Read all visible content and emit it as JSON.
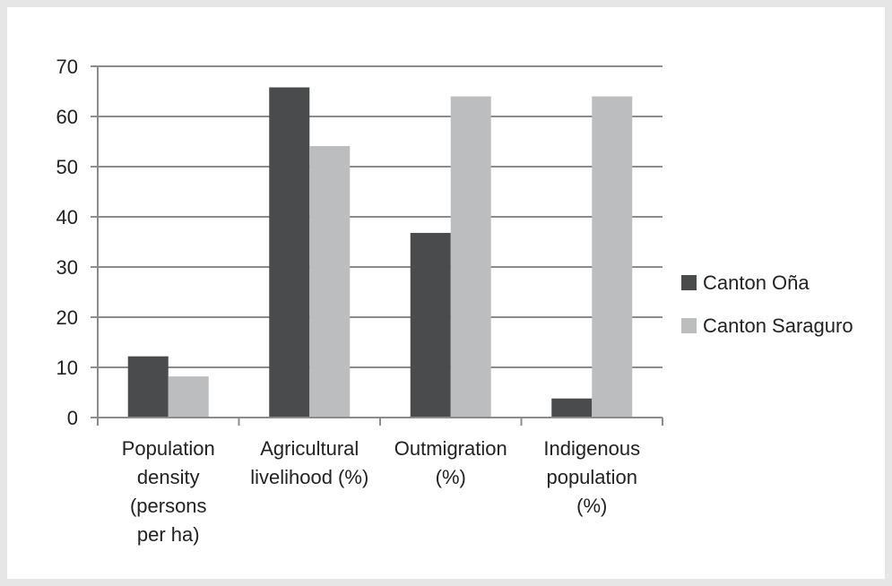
{
  "chart_data": {
    "type": "bar",
    "title": "",
    "xlabel": "",
    "ylabel": "",
    "ylim": [
      0,
      70
    ],
    "yticks": [
      0,
      10,
      20,
      30,
      40,
      50,
      60,
      70
    ],
    "grid": true,
    "legend_position": "right",
    "categories": [
      [
        "Population",
        "density",
        "(persons",
        "per ha)"
      ],
      [
        "Agricultural",
        "livelihood (%)"
      ],
      [
        "Outmigration",
        "(%)"
      ],
      [
        "Indigenous",
        "population",
        "(%)"
      ]
    ],
    "series": [
      {
        "name": "Canton Oña",
        "color": "#4a4b4d",
        "values": [
          12.2,
          65.8,
          36.8,
          3.8
        ]
      },
      {
        "name": "Canton Saraguro",
        "color": "#bcbdbf",
        "values": [
          8.2,
          54.1,
          64.0,
          64.0
        ]
      }
    ]
  }
}
